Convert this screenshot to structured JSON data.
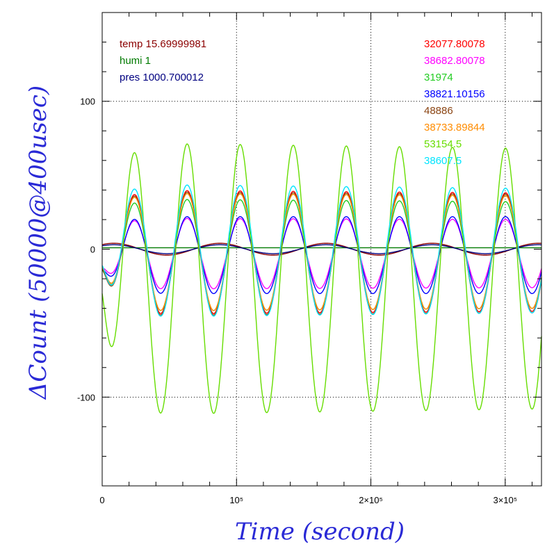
{
  "chart_data": {
    "type": "line",
    "xlabel": "Time (second)",
    "ylabel": "ΔCount (50000@400usec)",
    "xlim": [
      0,
      327000
    ],
    "ylim": [
      -160,
      160
    ],
    "x_ticks": [
      {
        "value": 0,
        "label": "0"
      },
      {
        "value": 100000,
        "label": "10⁵"
      },
      {
        "value": 200000,
        "label": "2×10⁵"
      },
      {
        "value": 300000,
        "label": "3×10⁵"
      }
    ],
    "y_ticks": [
      {
        "value": -100,
        "label": "-100"
      },
      {
        "value": 0,
        "label": "0"
      },
      {
        "value": 100,
        "label": "100"
      }
    ],
    "grid": "dotted at major ticks",
    "legend_left": [
      {
        "label": "temp 15.69999981",
        "color": "#8b0000"
      },
      {
        "label": "humi 1",
        "color": "#007a00"
      },
      {
        "label": "pres 1000.700012",
        "color": "#000080"
      }
    ],
    "legend_right": [
      {
        "label": "32077.80078",
        "color": "#ff0000"
      },
      {
        "label": "38682.80078",
        "color": "#ff00ff"
      },
      {
        "label": "31974",
        "color": "#22cc22"
      },
      {
        "label": "38821.10156",
        "color": "#0000ff"
      },
      {
        "label": "48886",
        "color": "#8b4513"
      },
      {
        "label": "38733.89844",
        "color": "#ff8c00"
      },
      {
        "label": "53154.5",
        "color": "#66dd00"
      },
      {
        "label": "38607.5",
        "color": "#00e5ff"
      }
    ],
    "oscillation_period_seconds": 39500,
    "oscillation_phase_seconds": 4000,
    "series": [
      {
        "name": "32077.80078",
        "color": "#ff0000",
        "amplitude": [
          42,
          40
        ],
        "offset": -2
      },
      {
        "name": "38682.80078",
        "color": "#ff00ff",
        "amplitude": [
          24,
          23
        ],
        "offset": -3
      },
      {
        "name": "31974",
        "color": "#22cc22",
        "amplitude": [
          38,
          36
        ],
        "offset": -4
      },
      {
        "name": "38821.10156",
        "color": "#0000ff",
        "amplitude": [
          26,
          26
        ],
        "offset": -4
      },
      {
        "name": "48886",
        "color": "#8b4513",
        "amplitude": [
          42,
          40
        ],
        "offset": -3
      },
      {
        "name": "38733.89844",
        "color": "#ff8c00",
        "amplitude": [
          40,
          38
        ],
        "offset": -2
      },
      {
        "name": "53154.5",
        "color": "#66dd00",
        "amplitude": [
          92,
          88
        ],
        "offset": -20
      },
      {
        "name": "38607.5",
        "color": "#00e5ff",
        "amplitude": [
          45,
          42
        ],
        "offset": -1
      }
    ],
    "environment_series": [
      {
        "name": "temp 15.69999981",
        "color": "#8b0000",
        "amplitude": 4,
        "offset": 0
      },
      {
        "name": "humi 1",
        "color": "#007a00",
        "amplitude": 0,
        "offset": 1
      },
      {
        "name": "pres 1000.700012",
        "color": "#000080",
        "amplitude": 3,
        "offset": 0
      }
    ]
  }
}
